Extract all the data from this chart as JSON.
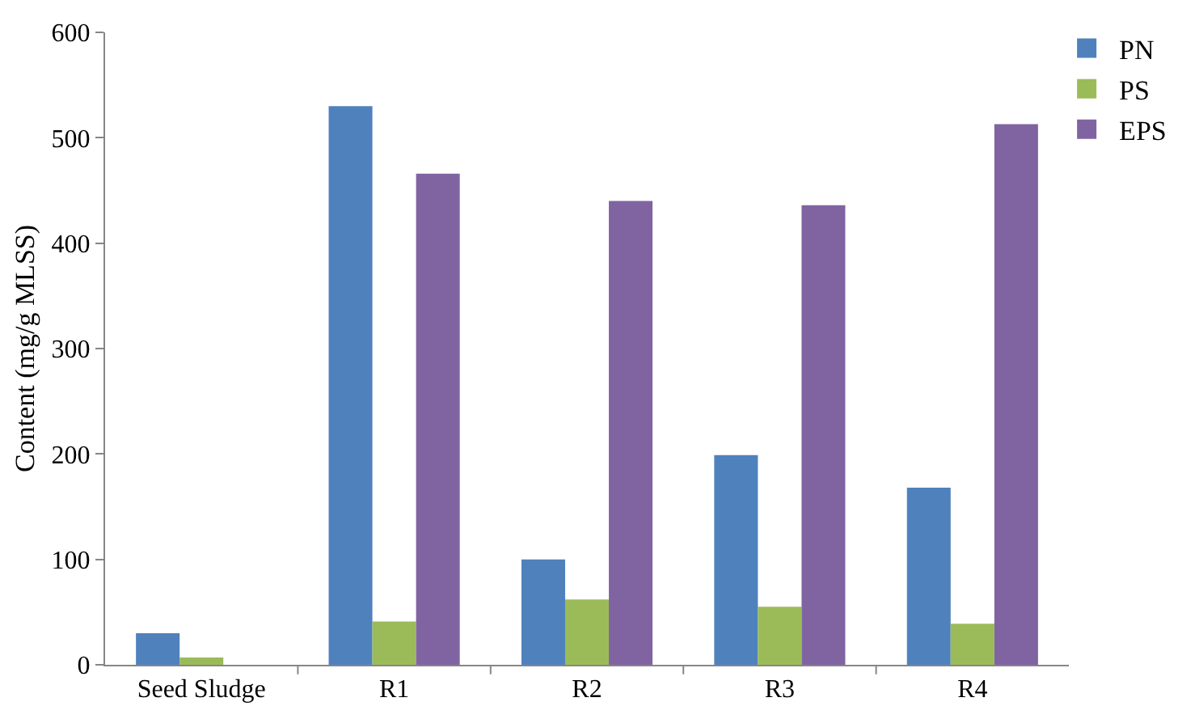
{
  "chart_data": {
    "type": "bar",
    "ylabel": "Content (mg/g MLSS)",
    "categories": [
      "Seed Sludge",
      "R1",
      "R2",
      "R3",
      "R4"
    ],
    "series": [
      {
        "name": "PN",
        "color": "#4f81bd",
        "values": [
          30,
          530,
          100,
          199,
          168
        ]
      },
      {
        "name": "PS",
        "color": "#9bbb59",
        "values": [
          7,
          41,
          62,
          55,
          39
        ]
      },
      {
        "name": "EPS",
        "color": "#8064a2",
        "values": [
          null,
          466,
          440,
          436,
          513
        ]
      }
    ],
    "ylim": [
      0,
      600
    ],
    "yticks": [
      0,
      100,
      200,
      300,
      400,
      500,
      600
    ],
    "grid": false,
    "legend": "top right"
  }
}
